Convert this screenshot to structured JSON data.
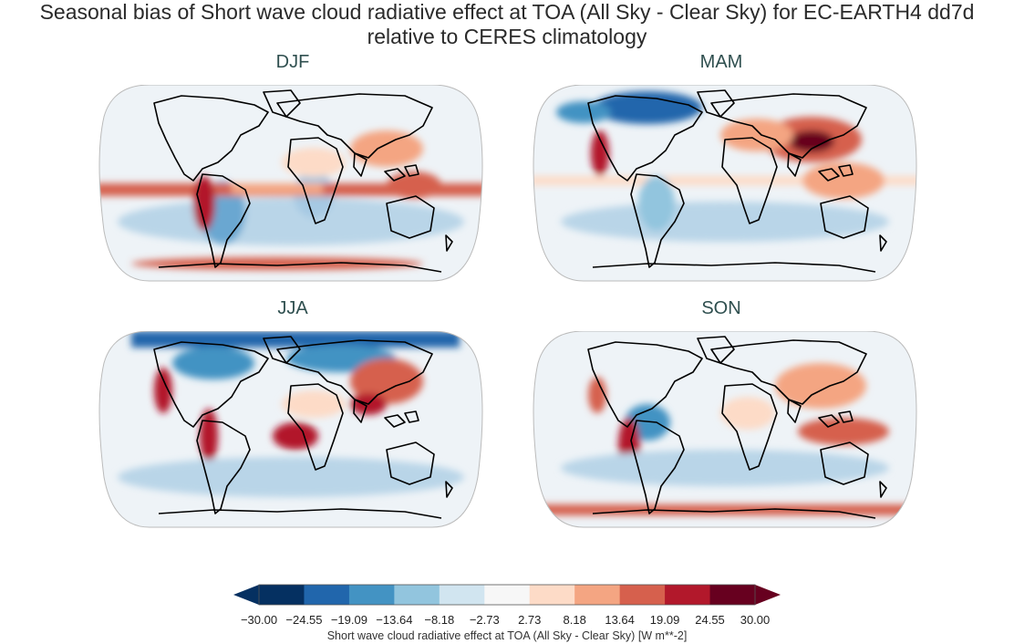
{
  "figure": {
    "title_line1": "Seasonal bias of Short wave cloud radiative effect at TOA (All Sky - Clear Sky) for EC-EARTH4 dd7d",
    "title_line2": "relative to CERES climatology"
  },
  "panels": [
    {
      "title": "DJF"
    },
    {
      "title": "MAM"
    },
    {
      "title": "JJA"
    },
    {
      "title": "SON"
    }
  ],
  "colorbar": {
    "label": "Short wave cloud radiative effect at TOA (All Sky - Clear Sky) [W m**-2]",
    "ticks": [
      "−30.00",
      "−24.55",
      "−19.09",
      "−13.64",
      "−8.18",
      "−2.73",
      "2.73",
      "8.18",
      "13.64",
      "19.09",
      "24.55",
      "30.00"
    ],
    "colors": [
      "#053061",
      "#2166ac",
      "#4393c3",
      "#92c5de",
      "#d1e5f0",
      "#f7f7f7",
      "#fddbc7",
      "#f4a582",
      "#d6604d",
      "#b2182b",
      "#67001f"
    ],
    "extend_low_color": "#053061",
    "extend_high_color": "#67001f"
  },
  "chart_data": {
    "type": "heatmap",
    "projection": "Robinson",
    "variable": "Short wave cloud radiative effect at TOA (All Sky - Clear Sky)",
    "units": "W m**-2",
    "levels": [
      -30.0,
      -24.55,
      -19.09,
      -13.64,
      -8.18,
      -2.73,
      2.73,
      8.18,
      13.64,
      19.09,
      24.55,
      30.0
    ],
    "panels": [
      "DJF",
      "MAM",
      "JJA",
      "SON"
    ]
  }
}
